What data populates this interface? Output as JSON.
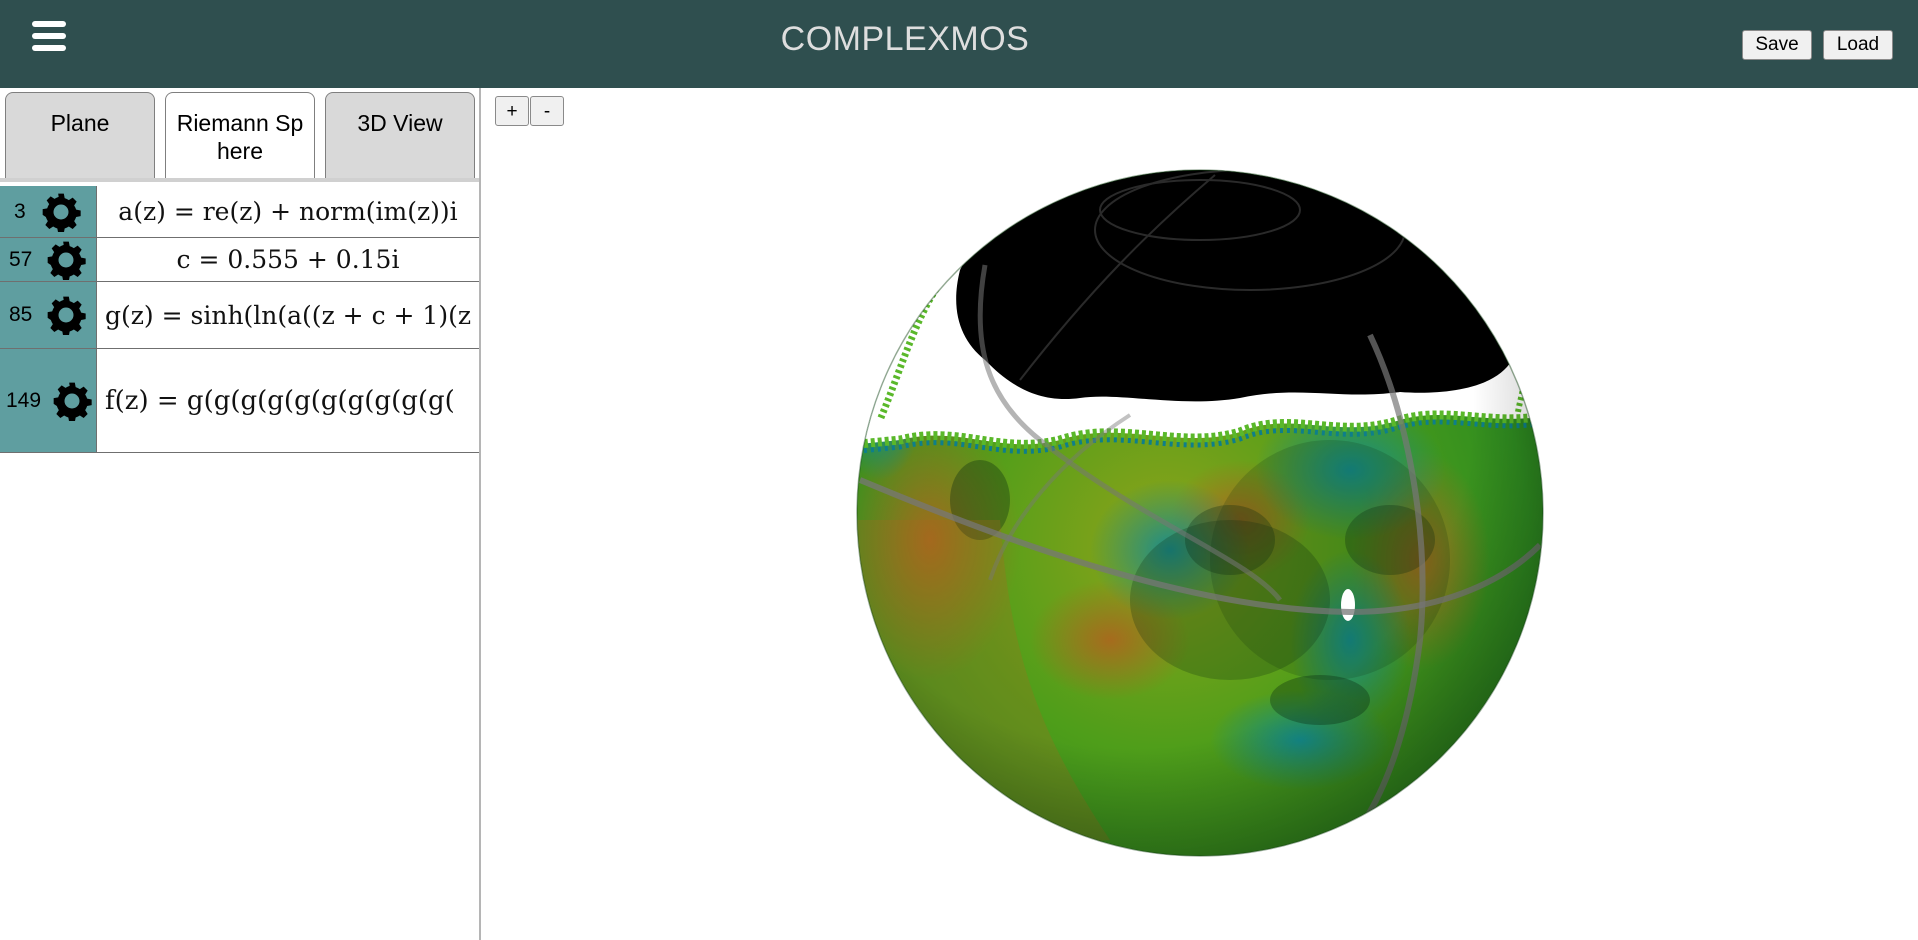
{
  "header": {
    "title": "COMPLEXMOS",
    "save_label": "Save",
    "load_label": "Load"
  },
  "tabs": [
    {
      "label": "Plane"
    },
    {
      "label": "Riemann Sphere",
      "active": true
    },
    {
      "label": "3D View"
    }
  ],
  "expressions": [
    {
      "id": "3",
      "latex": "a(z)=re(z)+norm(im(z))i",
      "display": "a(z) = re(z) + norm(im(z))i"
    },
    {
      "id": "57",
      "latex": "c=0.555+0.15i",
      "display": "c = 0.555 + 0.15i"
    },
    {
      "id": "85",
      "latex": "g(z)=sinh(ln(a((z+c+1)(z",
      "display": "g(z) = sinh(ln(a((z + c + 1)(z"
    },
    {
      "id": "149",
      "latex": "f(z)=g(g(g(g(g(g(g(g(g(g(",
      "display": "f(z) = g(g(g(g(g(g(g(g(g(g("
    }
  ],
  "zoom": {
    "in_label": "+",
    "out_label": "-"
  },
  "colors": {
    "header_bg": "#2f4f4f",
    "title_text": "#dedede",
    "expression_side": "#5f9ea0",
    "sphere_green": "#3e9a18",
    "sphere_teal": "#13808e",
    "sphere_orange": "#b06a1e"
  },
  "icons": {
    "menu": "hamburger-icon",
    "expression_settings": "gear-icon"
  }
}
